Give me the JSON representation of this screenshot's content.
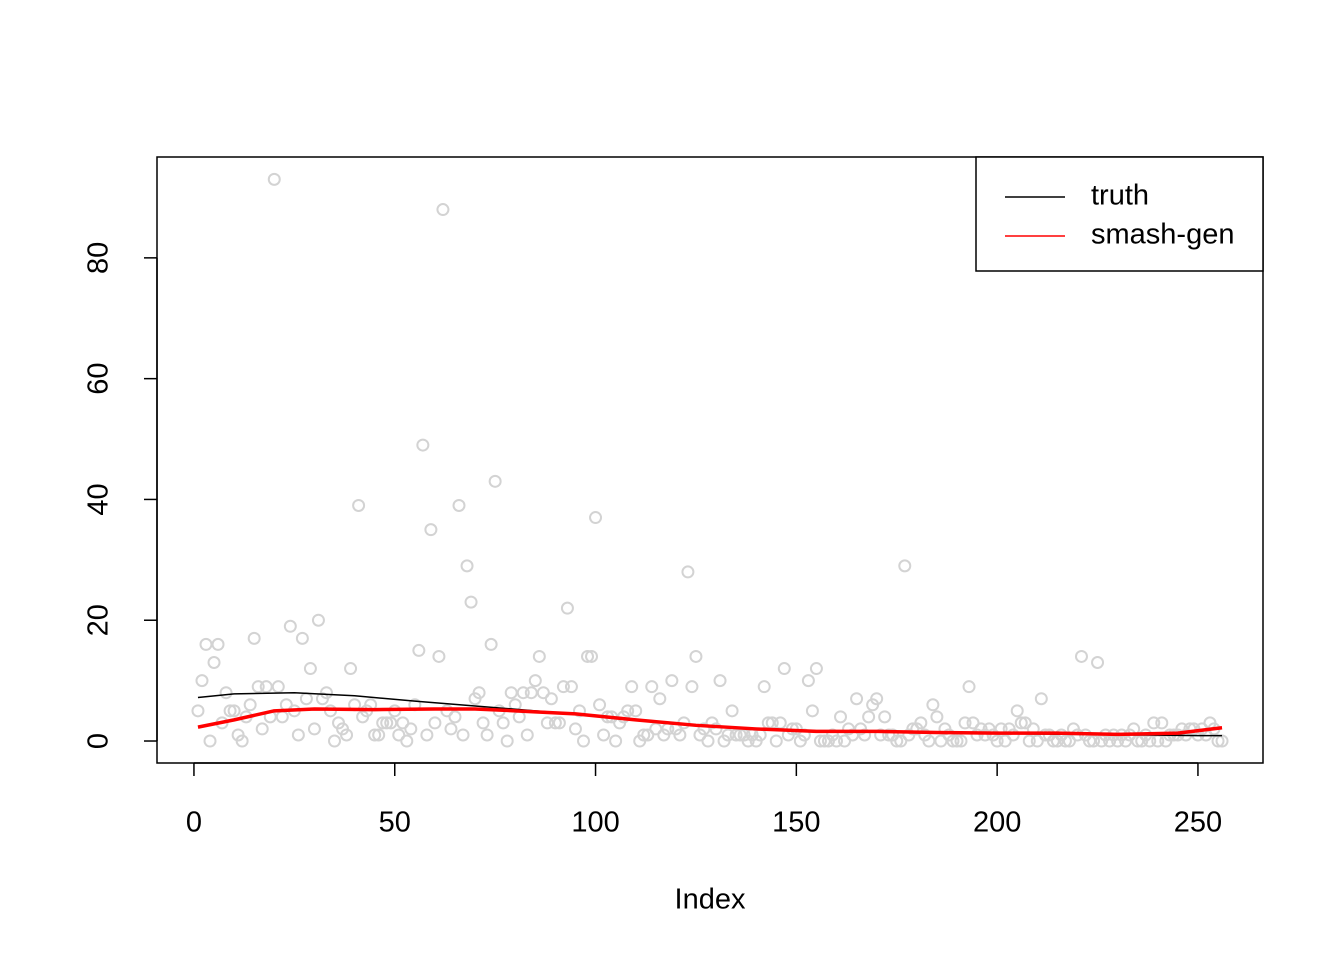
{
  "chart_data": {
    "type": "scatter",
    "xlabel": "Index",
    "xlim": [
      -9.2,
      266.2
    ],
    "ylim": [
      -3.64,
      96.7
    ],
    "xticks": [
      0,
      50,
      100,
      150,
      200,
      250
    ],
    "yticks": [
      0,
      20,
      40,
      60,
      80
    ],
    "legend": "top-right",
    "series": [
      {
        "mode": "markers",
        "color": "#d3d3d3",
        "x": [
          1,
          2,
          3,
          4,
          5,
          6,
          7,
          8,
          9,
          10,
          11,
          12,
          13,
          14,
          15,
          16,
          17,
          18,
          19,
          20,
          21,
          22,
          23,
          24,
          25,
          26,
          27,
          28,
          29,
          30,
          31,
          32,
          33,
          34,
          35,
          36,
          37,
          38,
          39,
          40,
          41,
          42,
          43,
          44,
          45,
          46,
          47,
          48,
          49,
          50,
          51,
          52,
          53,
          54,
          55,
          56,
          57,
          58,
          59,
          60,
          61,
          62,
          63,
          64,
          65,
          66,
          67,
          68,
          69,
          70,
          71,
          72,
          73,
          74,
          75,
          76,
          77,
          78,
          79,
          80,
          81,
          82,
          83,
          84,
          85,
          86,
          87,
          88,
          89,
          90,
          91,
          92,
          93,
          94,
          95,
          96,
          97,
          98,
          99,
          100,
          101,
          102,
          103,
          104,
          105,
          106,
          107,
          108,
          109,
          110,
          111,
          112,
          113,
          114,
          115,
          116,
          117,
          118,
          119,
          120,
          121,
          122,
          123,
          124,
          125,
          126,
          127,
          128,
          129,
          130,
          131,
          132,
          133,
          134,
          135,
          136,
          137,
          138,
          139,
          140,
          141,
          142,
          143,
          144,
          145,
          146,
          147,
          148,
          149,
          150,
          151,
          152,
          153,
          154,
          155,
          156,
          157,
          158,
          159,
          160,
          161,
          162,
          163,
          164,
          165,
          166,
          167,
          168,
          169,
          170,
          171,
          172,
          173,
          174,
          175,
          176,
          177,
          178,
          179,
          180,
          181,
          182,
          183,
          184,
          185,
          186,
          187,
          188,
          189,
          190,
          191,
          192,
          193,
          194,
          195,
          196,
          197,
          198,
          199,
          200,
          201,
          202,
          203,
          204,
          205,
          206,
          207,
          208,
          209,
          210,
          211,
          212,
          213,
          214,
          215,
          216,
          217,
          218,
          219,
          220,
          221,
          222,
          223,
          224,
          225,
          226,
          227,
          228,
          229,
          230,
          231,
          232,
          233,
          234,
          235,
          236,
          237,
          238,
          239,
          240,
          241,
          242,
          243,
          244,
          245,
          246,
          247,
          248,
          249,
          250,
          251,
          252,
          253,
          254,
          255,
          256
        ],
        "values": [
          5,
          10,
          16,
          0,
          13,
          16,
          3,
          8,
          5,
          5,
          1,
          0,
          4,
          6,
          17,
          9,
          2,
          9,
          4,
          93,
          9,
          4,
          6,
          19,
          5,
          1,
          17,
          7,
          12,
          2,
          20,
          7,
          8,
          5,
          0,
          3,
          2,
          1,
          12,
          6,
          39,
          4,
          5,
          6,
          1,
          1,
          3,
          3,
          3,
          5,
          1,
          3,
          0,
          2,
          6,
          15,
          49,
          1,
          35,
          3,
          14,
          88,
          5,
          2,
          4,
          39,
          1,
          29,
          23,
          7,
          8,
          3,
          1,
          16,
          43,
          5,
          3,
          0,
          8,
          6,
          4,
          8,
          1,
          8,
          10,
          14,
          8,
          3,
          7,
          3,
          3,
          9,
          22,
          9,
          2,
          5,
          0,
          14,
          14,
          37,
          6,
          1,
          4,
          4,
          0,
          3,
          4,
          5,
          9,
          5,
          0,
          1,
          1,
          9,
          2,
          7,
          1,
          2,
          10,
          2,
          1,
          3,
          28,
          9,
          14,
          1,
          2,
          0,
          3,
          2,
          10,
          0,
          1,
          5,
          1,
          1,
          1,
          0,
          1,
          0,
          1,
          9,
          3,
          3,
          0,
          3,
          12,
          1,
          2,
          2,
          0,
          1,
          10,
          5,
          12,
          0,
          0,
          0,
          1,
          0,
          4,
          0,
          2,
          1,
          7,
          2,
          1,
          4,
          6,
          7,
          1,
          4,
          1,
          1,
          0,
          0,
          29,
          1,
          2,
          2,
          3,
          1,
          0,
          6,
          4,
          0,
          2,
          1,
          0,
          0,
          0,
          3,
          9,
          3,
          1,
          2,
          1,
          2,
          1,
          0,
          2,
          0,
          2,
          1,
          5,
          3,
          3,
          0,
          2,
          0,
          7,
          1,
          1,
          0,
          0,
          1,
          0,
          0,
          2,
          1,
          14,
          1,
          0,
          0,
          13,
          0,
          1,
          0,
          1,
          0,
          1,
          0,
          1,
          2,
          0,
          0,
          1,
          0,
          3,
          0,
          3,
          0,
          1,
          1,
          1,
          2,
          1,
          2,
          2,
          1,
          2,
          1,
          3,
          2,
          0,
          0
        ]
      },
      {
        "name": "truth",
        "mode": "lines",
        "color": "#000000",
        "x": [
          1,
          10,
          25,
          40,
          55,
          70,
          85,
          100,
          115,
          130,
          145,
          160,
          175,
          190,
          205,
          220,
          235,
          250,
          256
        ],
        "values": [
          7.2,
          7.8,
          8.0,
          7.5,
          6.6,
          5.8,
          5.0,
          4.2,
          3.2,
          2.4,
          1.9,
          1.6,
          1.5,
          1.3,
          1.2,
          1.1,
          1.0,
          0.9,
          0.9
        ]
      },
      {
        "name": "smash-gen",
        "mode": "lines",
        "color": "#ff0000",
        "x": [
          1,
          10,
          20,
          30,
          45,
          60,
          70,
          80,
          95,
          110,
          125,
          140,
          155,
          170,
          185,
          200,
          215,
          230,
          245,
          256
        ],
        "values": [
          2.3,
          3.5,
          5.0,
          5.3,
          5.2,
          5.3,
          5.3,
          5.0,
          4.5,
          3.5,
          2.6,
          2.0,
          1.6,
          1.6,
          1.4,
          1.3,
          1.3,
          1.1,
          1.3,
          2.2
        ]
      }
    ]
  }
}
